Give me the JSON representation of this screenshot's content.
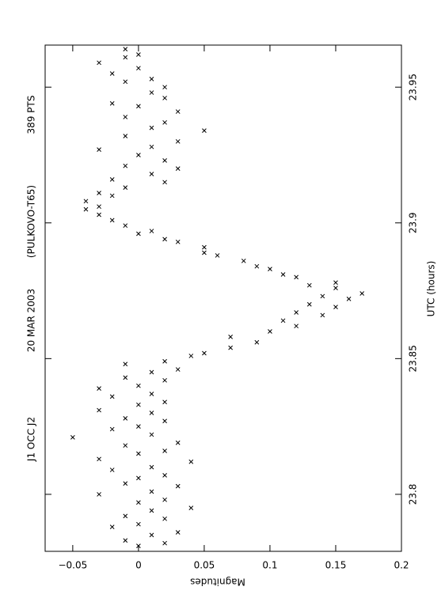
{
  "chart_data": {
    "type": "scatter",
    "title_parts": [
      "J1 OCC J2",
      "20 MAR 2003",
      "(PULKOVO-T65)",
      "389 PTS"
    ],
    "xlabel": "UTC (hours)",
    "ylabel": "Magnitudes",
    "color": "#000000",
    "xlim": [
      23.779,
      23.9655
    ],
    "xticks": [
      23.8,
      23.85,
      23.9,
      23.95
    ],
    "ylim": [
      -0.071,
      0.2
    ],
    "yticks": [
      {
        "value": -0.05,
        "label": "−0.05"
      },
      0,
      0.05,
      0.1,
      0.15,
      0.2
    ],
    "x": [
      23.781,
      23.782,
      23.783,
      23.785,
      23.786,
      23.788,
      23.789,
      23.791,
      23.792,
      23.794,
      23.795,
      23.797,
      23.798,
      23.8,
      23.801,
      23.803,
      23.804,
      23.806,
      23.807,
      23.809,
      23.81,
      23.812,
      23.813,
      23.815,
      23.816,
      23.818,
      23.819,
      23.821,
      23.822,
      23.824,
      23.825,
      23.827,
      23.828,
      23.83,
      23.831,
      23.833,
      23.834,
      23.836,
      23.837,
      23.839,
      23.84,
      23.842,
      23.843,
      23.845,
      23.846,
      23.848,
      23.849,
      23.851,
      23.852,
      23.854,
      23.856,
      23.858,
      23.86,
      23.862,
      23.864,
      23.866,
      23.867,
      23.869,
      23.87,
      23.872,
      23.873,
      23.874,
      23.876,
      23.877,
      23.878,
      23.88,
      23.881,
      23.883,
      23.884,
      23.886,
      23.888,
      23.889,
      23.891,
      23.893,
      23.894,
      23.896,
      23.897,
      23.899,
      23.901,
      23.903,
      23.905,
      23.906,
      23.908,
      23.91,
      23.911,
      23.913,
      23.915,
      23.916,
      23.918,
      23.92,
      23.921,
      23.923,
      23.925,
      23.927,
      23.928,
      23.93,
      23.932,
      23.934,
      23.935,
      23.937,
      23.939,
      23.941,
      23.943,
      23.944,
      23.946,
      23.948,
      23.95,
      23.952,
      23.953,
      23.955,
      23.957,
      23.959,
      23.961,
      23.962,
      23.964
    ],
    "values": [
      0.0,
      0.02,
      -0.01,
      0.01,
      0.03,
      -0.02,
      0.0,
      0.02,
      -0.01,
      0.01,
      0.04,
      0.0,
      0.02,
      -0.03,
      0.01,
      0.03,
      -0.01,
      0.0,
      0.02,
      -0.02,
      0.01,
      0.04,
      -0.03,
      0.0,
      0.02,
      -0.01,
      0.03,
      -0.05,
      0.01,
      -0.02,
      0.0,
      0.02,
      -0.01,
      0.01,
      -0.03,
      0.0,
      0.02,
      -0.02,
      0.01,
      -0.03,
      0.0,
      0.02,
      -0.01,
      0.01,
      0.03,
      -0.01,
      0.02,
      0.04,
      0.05,
      0.07,
      0.09,
      0.07,
      0.1,
      0.12,
      0.11,
      0.14,
      0.12,
      0.15,
      0.13,
      0.16,
      0.14,
      0.17,
      0.15,
      0.13,
      0.15,
      0.12,
      0.11,
      0.1,
      0.09,
      0.08,
      0.06,
      0.05,
      0.05,
      0.03,
      0.02,
      0.0,
      0.01,
      -0.01,
      -0.02,
      -0.03,
      -0.04,
      -0.03,
      -0.04,
      -0.02,
      -0.03,
      -0.01,
      0.02,
      -0.02,
      0.01,
      0.03,
      -0.01,
      0.02,
      0.0,
      -0.03,
      0.01,
      0.03,
      -0.01,
      0.05,
      0.01,
      0.02,
      -0.01,
      0.03,
      0.0,
      -0.02,
      0.02,
      0.01,
      0.02,
      -0.01,
      0.01,
      -0.02,
      0.0,
      -0.03,
      -0.01,
      0.0,
      -0.01
    ]
  }
}
